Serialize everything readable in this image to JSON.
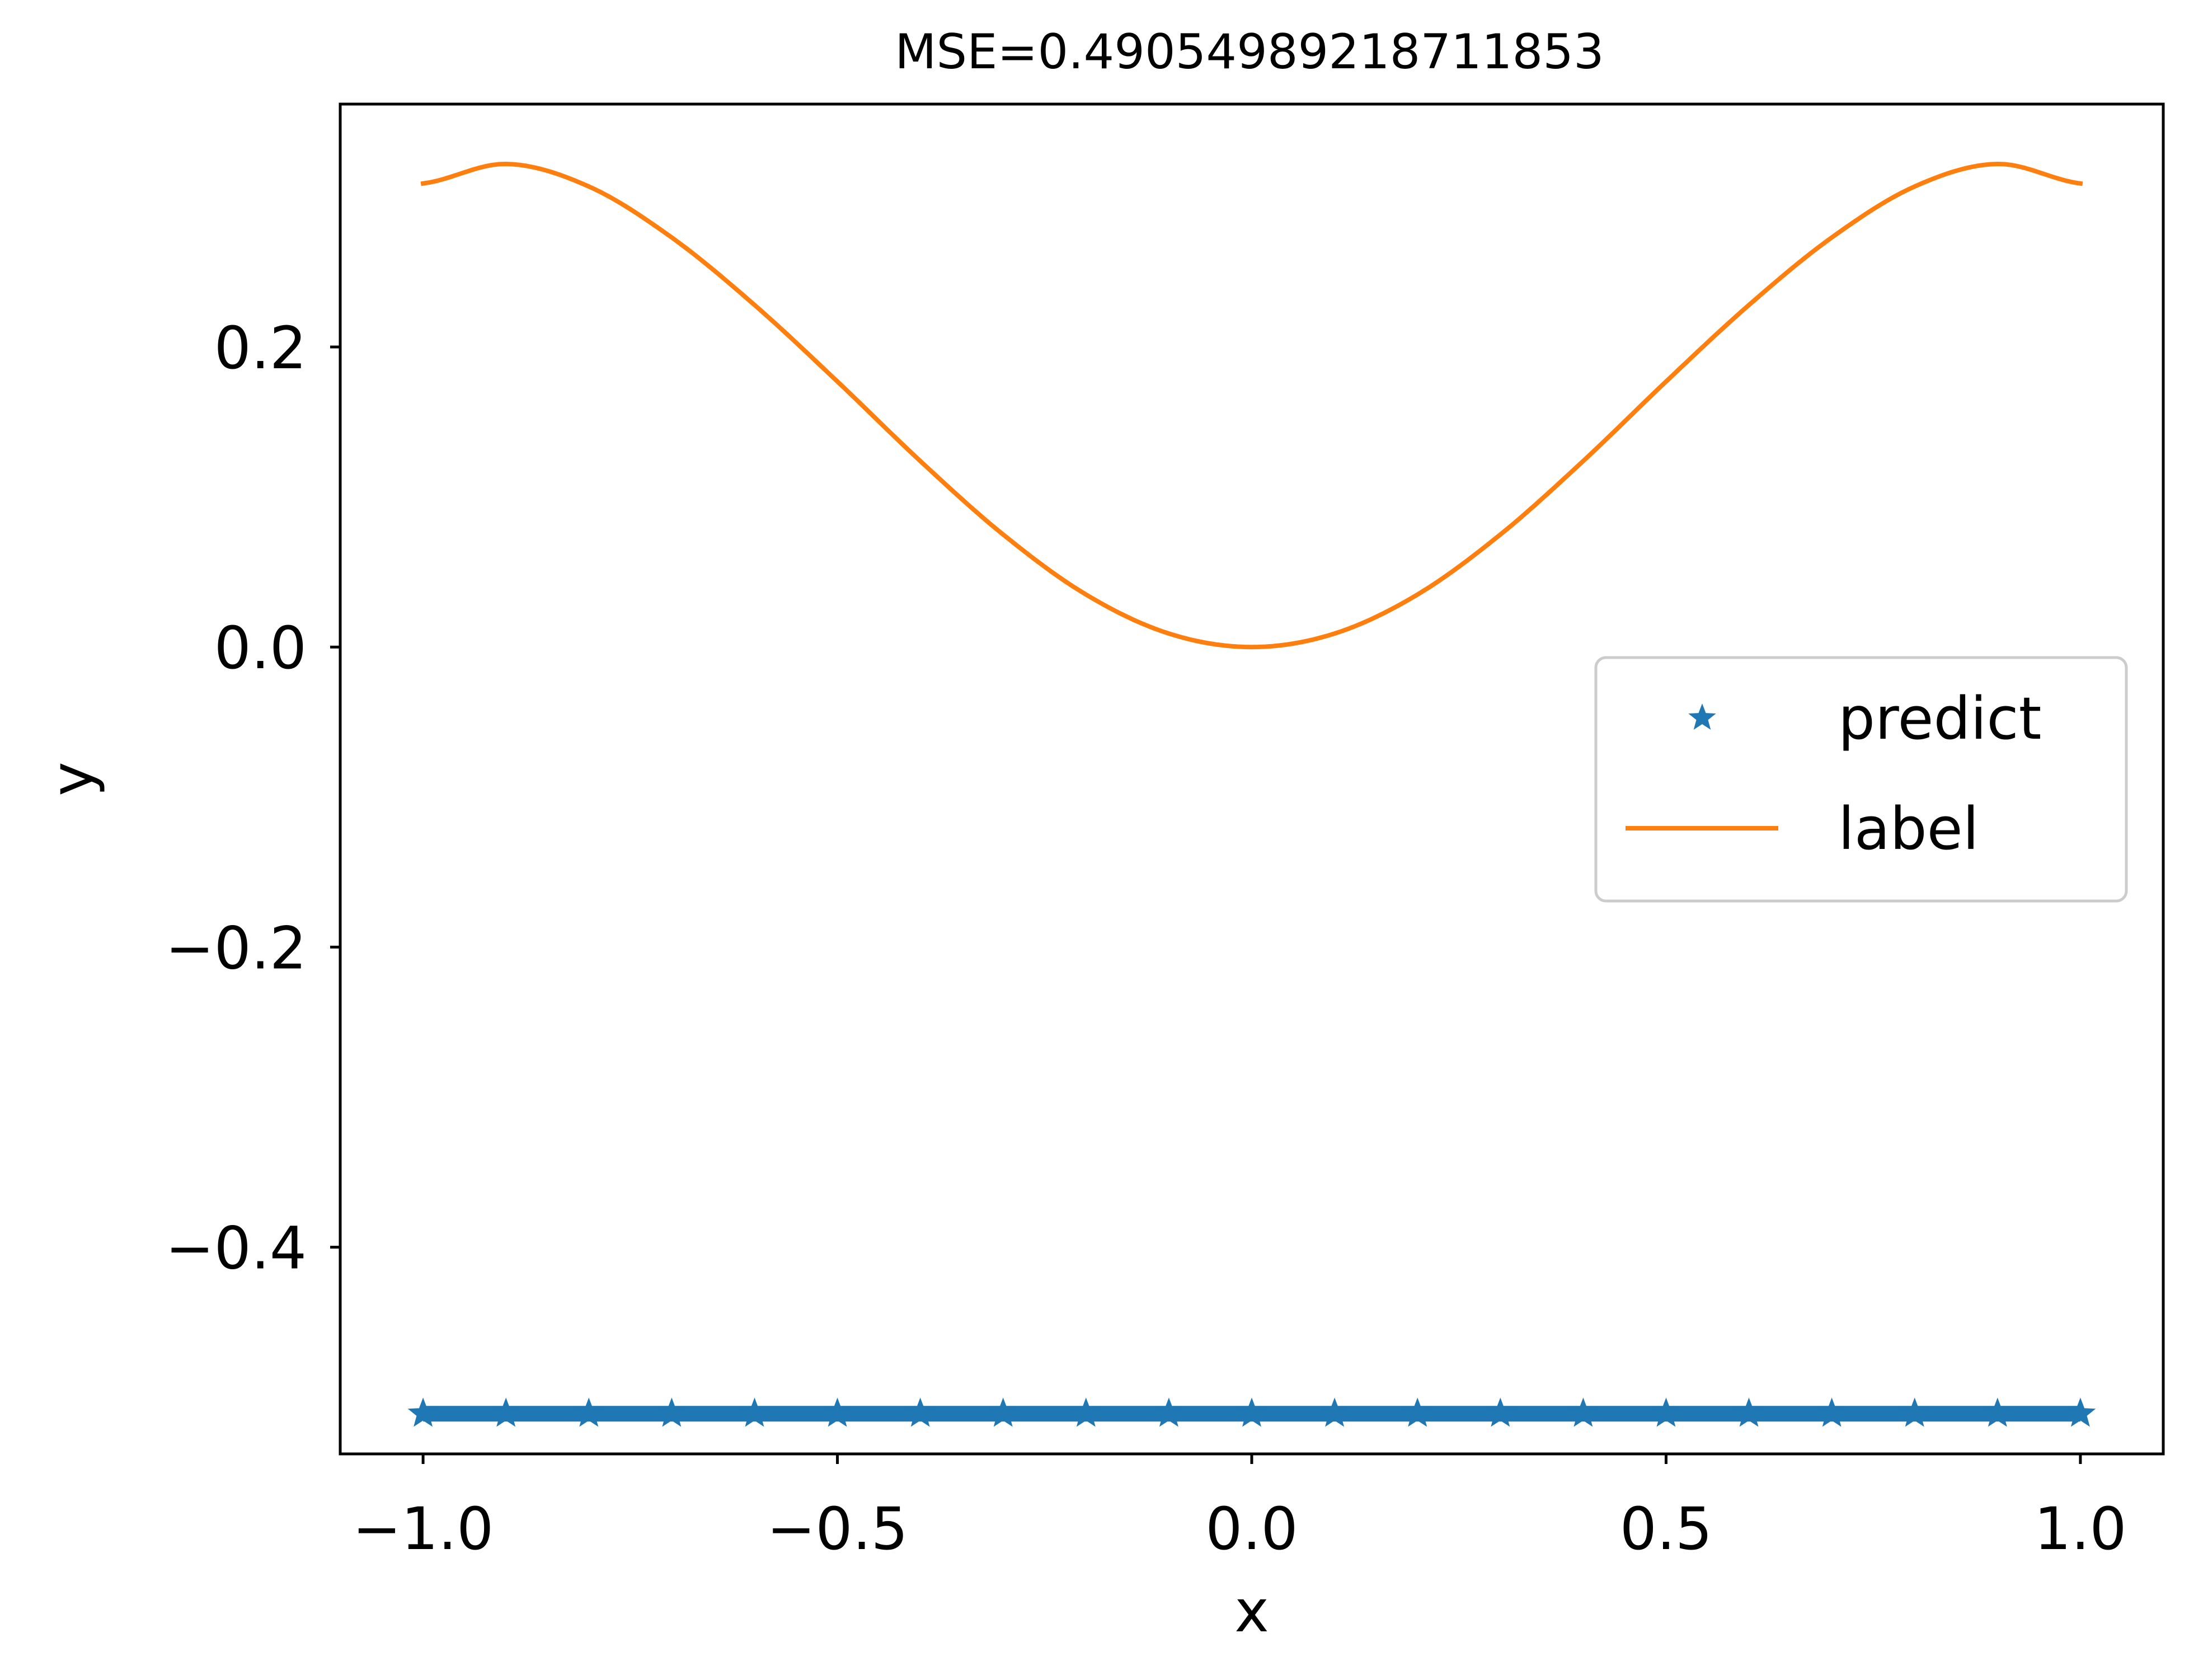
{
  "chart_data": {
    "type": "line",
    "title": "MSE=0.49054989218711853",
    "xlabel": "x",
    "ylabel": "y",
    "xlim": [
      -1.1,
      1.1
    ],
    "ylim": [
      -0.5378,
      0.3619
    ],
    "xticks": [
      {
        "value": -1.0,
        "label": "−1.0"
      },
      {
        "value": -0.5,
        "label": "−0.5"
      },
      {
        "value": 0.0,
        "label": "0.0"
      },
      {
        "value": 0.5,
        "label": "0.5"
      },
      {
        "value": 1.0,
        "label": "1.0"
      }
    ],
    "yticks": [
      {
        "value": 0.2,
        "label": "0.2"
      },
      {
        "value": 0.0,
        "label": "0.0"
      },
      {
        "value": -0.2,
        "label": "−0.2"
      },
      {
        "value": -0.4,
        "label": "−0.4"
      }
    ],
    "grid": false,
    "legend_position": "center-right",
    "series": [
      {
        "name": "predict",
        "kind": "scatter",
        "marker": "star",
        "color": "#1f77b4",
        "x": [
          -1.0,
          -0.9,
          -0.8,
          -0.7,
          -0.6,
          -0.5,
          -0.4,
          -0.3,
          -0.2,
          -0.1,
          0.0,
          0.1,
          0.2,
          0.3,
          0.4,
          0.5,
          0.6,
          0.7,
          0.8,
          0.9,
          1.0
        ],
        "y": [
          -0.511,
          -0.511,
          -0.511,
          -0.511,
          -0.511,
          -0.511,
          -0.511,
          -0.511,
          -0.511,
          -0.511,
          -0.511,
          -0.511,
          -0.511,
          -0.511,
          -0.511,
          -0.511,
          -0.511,
          -0.511,
          -0.511,
          -0.511,
          -0.511
        ]
      },
      {
        "name": "label",
        "kind": "line",
        "color": "#ff7f0e",
        "x": [
          -1.0,
          -0.9,
          -0.8,
          -0.7,
          -0.6,
          -0.5,
          -0.4,
          -0.3,
          -0.2,
          -0.1,
          0.0,
          0.1,
          0.2,
          0.3,
          0.4,
          0.5,
          0.6,
          0.7,
          0.8,
          0.9,
          1.0
        ],
        "y": [
          0.309,
          0.322,
          0.307,
          0.273,
          0.228,
          0.177,
          0.124,
          0.075,
          0.035,
          0.009,
          0.0,
          0.009,
          0.035,
          0.075,
          0.124,
          0.177,
          0.228,
          0.273,
          0.307,
          0.322,
          0.309
        ]
      }
    ]
  }
}
